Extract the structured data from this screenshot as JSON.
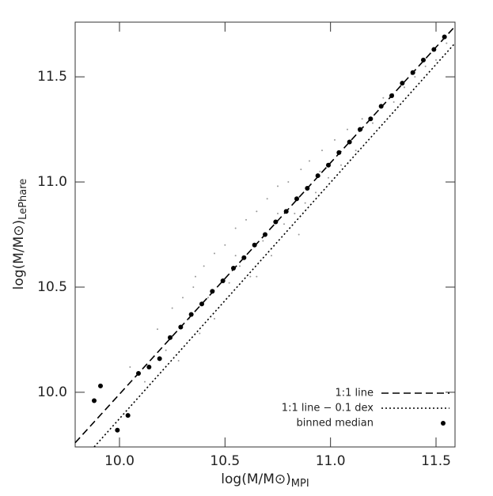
{
  "chart_data": {
    "type": "scatter",
    "xlabel": "log(M/M⊙)",
    "xlabel_sub": "MPI",
    "ylabel": "log(M/M⊙)",
    "ylabel_sub": "LePhare",
    "xlim": [
      9.79,
      11.59
    ],
    "ylim": [
      9.74,
      11.76
    ],
    "xticks": [
      {
        "value": 10,
        "label": "10.0"
      },
      10.5,
      {
        "value": 11,
        "label": "11.0"
      },
      11.5
    ],
    "yticks": [
      {
        "value": 10,
        "label": "10.0"
      },
      10.5,
      {
        "value": 11,
        "label": "11.0"
      },
      11.5
    ],
    "legend": "lower right",
    "series": [
      {
        "color": "#999999",
        "marker": "point",
        "x": [
          10.05,
          10.12,
          10.18,
          10.22,
          10.25,
          10.28,
          10.3,
          10.33,
          10.36,
          10.38,
          10.4,
          10.42,
          10.45,
          10.47,
          10.5,
          10.52,
          10.55,
          10.57,
          10.6,
          10.62,
          10.65,
          10.68,
          10.7,
          10.72,
          10.75,
          10.78,
          10.8,
          10.83,
          10.86,
          10.88,
          10.9,
          10.93,
          10.96,
          10.99,
          11.02,
          11.05,
          11.08,
          11.12,
          11.15,
          11.2,
          11.25,
          11.3,
          11.35,
          11.4,
          11.45,
          11.5,
          11.55,
          10.35,
          10.55,
          10.75,
          10.95,
          11.15,
          11.35,
          10.45,
          10.65,
          10.85
        ],
        "y": [
          10.12,
          10.05,
          10.3,
          10.2,
          10.4,
          10.15,
          10.45,
          10.35,
          10.55,
          10.28,
          10.6,
          10.45,
          10.66,
          10.4,
          10.7,
          10.52,
          10.78,
          10.6,
          10.82,
          10.55,
          10.86,
          10.72,
          10.92,
          10.65,
          10.98,
          10.8,
          11.0,
          10.85,
          11.06,
          10.9,
          11.1,
          10.95,
          11.15,
          11.02,
          11.2,
          11.08,
          11.25,
          11.15,
          11.3,
          11.28,
          11.4,
          11.38,
          11.45,
          11.5,
          11.55,
          11.58,
          11.66,
          10.5,
          10.65,
          10.85,
          11.05,
          11.25,
          11.45,
          10.35,
          10.55,
          10.75
        ]
      },
      {
        "name": "1:1 line",
        "color": "#000000",
        "marker": "dashed",
        "x": [
          9.79,
          11.59
        ],
        "y": [
          9.76,
          11.74
        ]
      },
      {
        "name": "1:1 line − 0.1 dex",
        "color": "#000000",
        "marker": "dotted",
        "x": [
          9.88,
          11.59
        ],
        "y": [
          9.74,
          11.66
        ]
      },
      {
        "name": "binned median",
        "color": "#000000",
        "marker": "dot",
        "x": [
          9.88,
          9.91,
          9.99,
          10.04,
          10.09,
          10.14,
          10.19,
          10.24,
          10.29,
          10.34,
          10.39,
          10.44,
          10.49,
          10.54,
          10.59,
          10.64,
          10.69,
          10.74,
          10.79,
          10.84,
          10.89,
          10.94,
          10.99,
          11.04,
          11.09,
          11.14,
          11.19,
          11.24,
          11.29,
          11.34,
          11.39,
          11.44,
          11.49,
          11.54
        ],
        "y": [
          9.96,
          10.03,
          9.82,
          9.89,
          10.09,
          10.12,
          10.16,
          10.26,
          10.31,
          10.37,
          10.42,
          10.48,
          10.53,
          10.59,
          10.64,
          10.7,
          10.75,
          10.81,
          10.86,
          10.92,
          10.97,
          11.03,
          11.08,
          11.14,
          11.19,
          11.25,
          11.3,
          11.36,
          11.41,
          11.47,
          11.52,
          11.58,
          11.63,
          11.69
        ]
      }
    ]
  }
}
